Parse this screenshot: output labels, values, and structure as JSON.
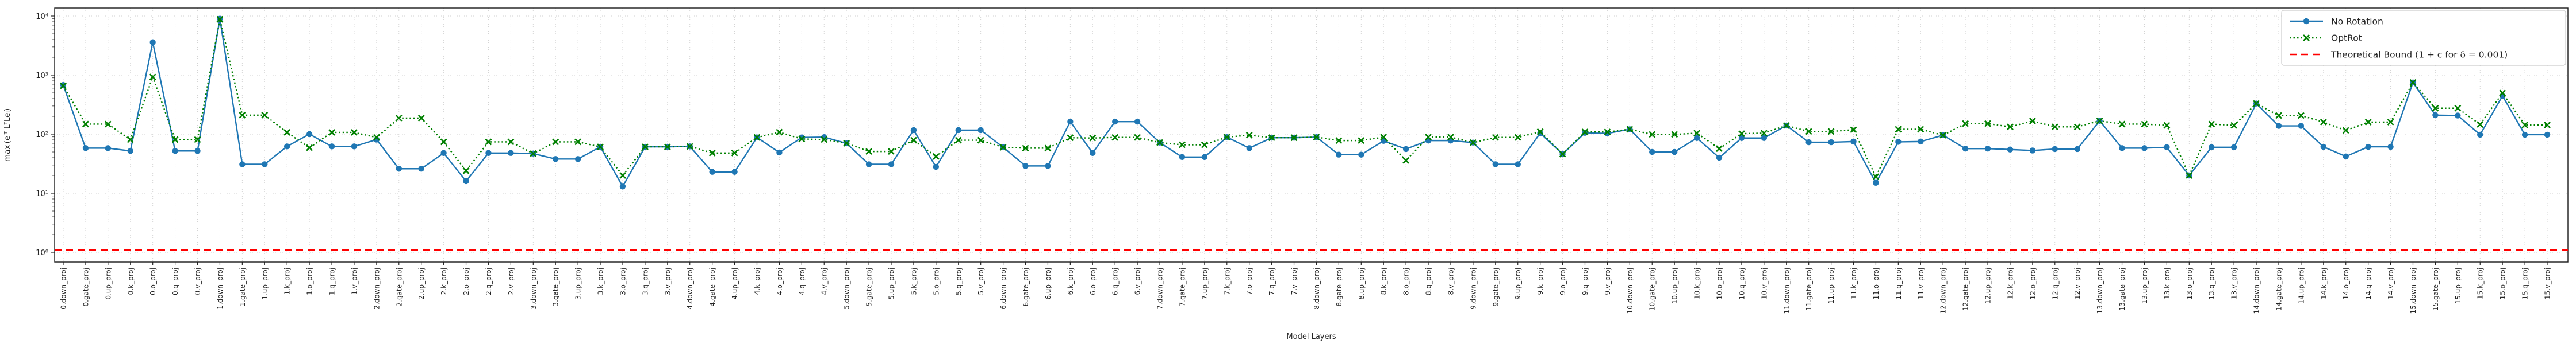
{
  "chart_data": {
    "type": "line",
    "title": "",
    "xlabel": "Model Layers",
    "ylabel": "maxᵢ(eᵢᵀ LᵀLeᵢ)",
    "yscale": "log",
    "ylim": [
      1,
      10000
    ],
    "grid": true,
    "legend_position": "upper right",
    "y_ticks": [
      "10⁰",
      "10¹",
      "10²",
      "10³",
      "10⁴"
    ],
    "categories": [
      "0.down_proj",
      "0.gate_proj",
      "0.up_proj",
      "0.k_proj",
      "0.o_proj",
      "0.q_proj",
      "0.v_proj",
      "1.down_proj",
      "1.gate_proj",
      "1.up_proj",
      "1.k_proj",
      "1.o_proj",
      "1.q_proj",
      "1.v_proj",
      "2.down_proj",
      "2.gate_proj",
      "2.up_proj",
      "2.k_proj",
      "2.o_proj",
      "2.q_proj",
      "2.v_proj",
      "3.down_proj",
      "3.gate_proj",
      "3.up_proj",
      "3.k_proj",
      "3.o_proj",
      "3.q_proj",
      "3.v_proj",
      "4.down_proj",
      "4.gate_proj",
      "4.up_proj",
      "4.k_proj",
      "4.o_proj",
      "4.q_proj",
      "4.v_proj",
      "5.down_proj",
      "5.gate_proj",
      "5.up_proj",
      "5.k_proj",
      "5.o_proj",
      "5.q_proj",
      "5.v_proj",
      "6.down_proj",
      "6.gate_proj",
      "6.up_proj",
      "6.k_proj",
      "6.o_proj",
      "6.q_proj",
      "6.v_proj",
      "7.down_proj",
      "7.gate_proj",
      "7.up_proj",
      "7.k_proj",
      "7.o_proj",
      "7.q_proj",
      "7.v_proj",
      "8.down_proj",
      "8.gate_proj",
      "8.up_proj",
      "8.k_proj",
      "8.o_proj",
      "8.q_proj",
      "8.v_proj",
      "9.down_proj",
      "9.gate_proj",
      "9.up_proj",
      "9.k_proj",
      "9.o_proj",
      "9.q_proj",
      "9.v_proj",
      "10.down_proj",
      "10.gate_proj",
      "10.up_proj",
      "10.k_proj",
      "10.o_proj",
      "10.q_proj",
      "10.v_proj",
      "11.down_proj",
      "11.gate_proj",
      "11.up_proj",
      "11.k_proj",
      "11.o_proj",
      "11.q_proj",
      "11.v_proj",
      "12.down_proj",
      "12.gate_proj",
      "12.up_proj",
      "12.k_proj",
      "12.o_proj",
      "12.q_proj",
      "12.v_proj",
      "13.down_proj",
      "13.gate_proj",
      "13.up_proj",
      "13.k_proj",
      "13.o_proj",
      "13.q_proj",
      "13.v_proj",
      "14.down_proj",
      "14.gate_proj",
      "14.up_proj",
      "14.k_proj",
      "14.o_proj",
      "14.q_proj",
      "14.v_proj",
      "15.down_proj",
      "15.gate_proj",
      "15.up_proj",
      "15.k_proj",
      "15.o_proj",
      "15.q_proj",
      "15.v_proj"
    ],
    "series": [
      {
        "name": "No Rotation",
        "color": "#1f77b4",
        "line_style": "solid",
        "marker": "circle",
        "values": [
          680,
          58,
          58,
          52,
          3600,
          52,
          52,
          9000,
          31,
          31,
          62,
          100,
          62,
          62,
          81,
          26,
          26,
          48,
          16,
          48,
          48,
          47,
          38,
          38,
          61,
          13,
          61,
          61,
          62,
          23,
          23,
          88,
          49,
          88,
          89,
          70,
          31,
          31,
          117,
          28,
          117,
          117,
          60,
          29,
          29,
          163,
          48,
          163,
          163,
          72,
          41,
          41,
          89,
          58,
          87,
          87,
          89,
          45,
          45,
          77,
          56,
          78,
          78,
          72,
          31,
          31,
          104,
          46,
          105,
          103,
          121,
          50,
          50,
          86,
          40,
          86,
          86,
          140,
          73,
          73,
          75,
          15,
          74,
          75,
          96,
          57,
          57,
          55,
          53,
          56,
          56,
          168,
          58,
          58,
          60,
          20,
          60,
          60,
          330,
          138,
          138,
          61,
          42,
          61,
          61,
          750,
          210,
          207,
          98,
          444,
          98,
          98
        ]
      },
      {
        "name": "OptRot",
        "color": "#008000",
        "line_style": "dotted",
        "marker": "x",
        "values": [
          660,
          148,
          148,
          81,
          930,
          81,
          81,
          8800,
          210,
          210,
          107,
          59,
          107,
          107,
          88,
          187,
          187,
          74,
          24,
          74,
          74,
          47,
          74,
          74,
          61,
          20,
          61,
          61,
          62,
          48,
          48,
          88,
          108,
          83,
          81,
          70,
          51,
          51,
          79,
          42,
          79,
          79,
          60,
          58,
          58,
          87,
          86,
          88,
          88,
          72,
          66,
          66,
          89,
          96,
          87,
          87,
          89,
          78,
          78,
          89,
          36,
          89,
          89,
          72,
          88,
          88,
          110,
          46,
          109,
          109,
          121,
          99,
          99,
          104,
          57,
          102,
          104,
          140,
          111,
          111,
          119,
          19,
          121,
          121,
          96,
          151,
          151,
          133,
          167,
          133,
          133,
          168,
          148,
          148,
          141,
          20,
          148,
          141,
          330,
          207,
          207,
          160,
          116,
          160,
          160,
          750,
          275,
          275,
          146,
          497,
          143,
          143
        ]
      }
    ],
    "bound_line": {
      "name": "Theoretical Bound (1 + c for δ = 0.001)",
      "color": "#ff0000",
      "line_style": "dashed",
      "value": 1.1
    }
  }
}
